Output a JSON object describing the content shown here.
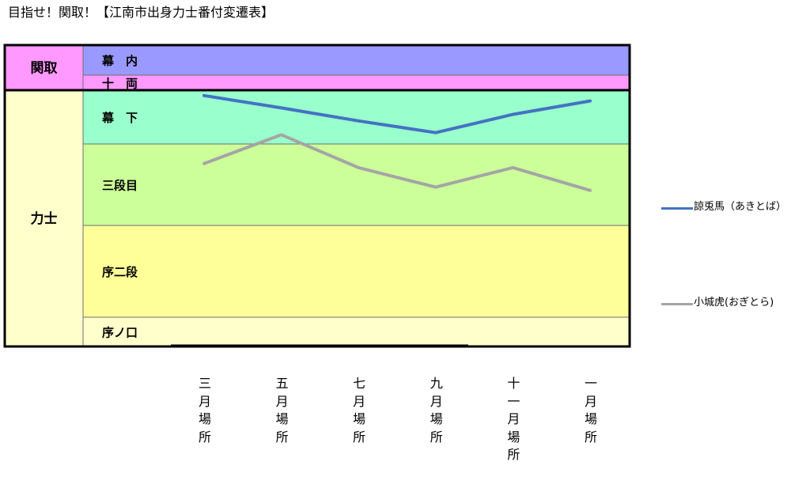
{
  "title": "目指せ！関取！【江南市出身力士番付変遷表】",
  "chart_data": {
    "type": "line",
    "categories": [
      "三月場所",
      "五月場所",
      "七月場所",
      "九月場所",
      "十一月場所",
      "一月場所"
    ],
    "y_scale": "ordinal rank bands (top = highest rank)",
    "groups": [
      {
        "label": "関取",
        "color": "#ff99ff",
        "ranks": [
          "幕内",
          "十両"
        ]
      },
      {
        "label": "力士",
        "color": "#ffffcc",
        "ranks": [
          "幕下",
          "三段目",
          "序二段",
          "序ノ口"
        ]
      }
    ],
    "rank_bands": [
      {
        "label": "幕　内",
        "color": "#9999ff"
      },
      {
        "label": "十　両",
        "color": "#ff99ff"
      },
      {
        "label": "幕　下",
        "color": "#99ffcc"
      },
      {
        "label": "三段目",
        "color": "#ccff99"
      },
      {
        "label": "序二段",
        "color": "#ffff99"
      },
      {
        "label": "序ノ口",
        "color": "#ffffcc"
      }
    ],
    "series": [
      {
        "name": "諒兎馬（あきとば）",
        "color": "#4472c4",
        "values": [
          3.1,
          3.33,
          3.57,
          3.79,
          3.45,
          3.2
        ]
      },
      {
        "name": "小城虎(おぎとら)",
        "color": "#a5a5a5",
        "values": [
          4.24,
          3.83,
          4.29,
          4.53,
          4.29,
          4.57
        ]
      }
    ],
    "grid": false,
    "legend_position": "right"
  }
}
